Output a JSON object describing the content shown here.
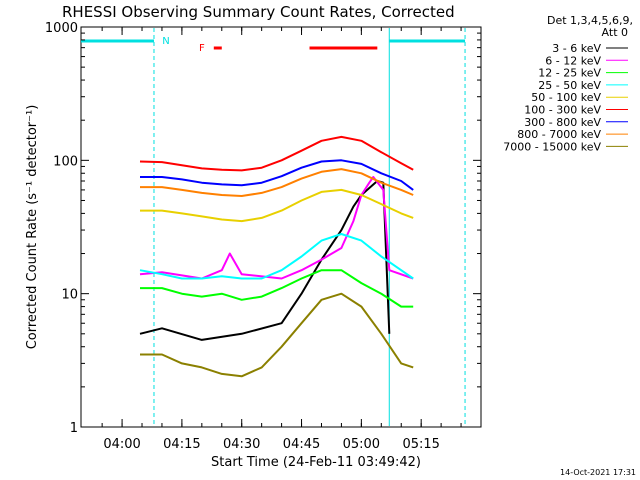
{
  "chart_data": {
    "type": "line",
    "title": "RHESSI Observing Summary Count Rates, Corrected",
    "xlabel": "Start Time (24-Feb-11 03:49:42)",
    "ylabel": "Corrected Count Rate (s⁻¹ detector⁻¹)",
    "yscale": "log",
    "ylim": [
      1,
      1000
    ],
    "xlim_minutes": [
      229.7,
      330
    ],
    "x_ticks": [
      {
        "label": "04:00",
        "minute": 240
      },
      {
        "label": "04:15",
        "minute": 255
      },
      {
        "label": "04:30",
        "minute": 270
      },
      {
        "label": "04:45",
        "minute": 285
      },
      {
        "label": "05:00",
        "minute": 300
      },
      {
        "label": "05:15",
        "minute": 315
      }
    ],
    "y_ticks": [
      {
        "label": "1",
        "value": 1
      },
      {
        "label": "10",
        "value": 10
      },
      {
        "label": "100",
        "value": 100
      },
      {
        "label": "1000",
        "value": 1000
      }
    ],
    "legend_title": "Det 1,3,4,5,6,9,",
    "legend_title2": "Att 0",
    "legend_position": "top-right",
    "series": [
      {
        "name": "3 - 6 keV",
        "color": "#000000",
        "x": [
          244.5,
          250,
          260,
          270,
          280,
          285,
          290,
          295,
          298,
          300,
          302,
          304,
          305.5,
          307
        ],
        "y": [
          5,
          5.5,
          4.5,
          5,
          6,
          10,
          18,
          30,
          45,
          55,
          62,
          70,
          68,
          5
        ]
      },
      {
        "name": "6 - 12 keV",
        "color": "#ff00ff",
        "x": [
          244.5,
          250,
          260,
          265,
          267,
          270,
          280,
          285,
          290,
          295,
          298,
          300,
          302,
          303,
          305.5,
          307,
          313
        ],
        "y": [
          14,
          14.5,
          13,
          15,
          20,
          14,
          13,
          15,
          18,
          22,
          35,
          55,
          68,
          75,
          60,
          15,
          13
        ]
      },
      {
        "name": "12 - 25 keV",
        "color": "#00ff00",
        "x": [
          244.5,
          250,
          255,
          260,
          265,
          270,
          275,
          280,
          285,
          290,
          295,
          300,
          305,
          310,
          313
        ],
        "y": [
          11,
          11,
          10,
          9.5,
          10,
          9,
          9.5,
          11,
          13,
          15,
          15,
          12,
          10,
          8,
          8
        ]
      },
      {
        "name": "25 - 50 keV",
        "color": "#00ffff",
        "x": [
          244.5,
          250,
          255,
          260,
          265,
          270,
          275,
          280,
          285,
          290,
          295,
          300,
          305,
          310,
          313
        ],
        "y": [
          15,
          14,
          13,
          13,
          13.5,
          13,
          13,
          15,
          19,
          25,
          28,
          25,
          19,
          15,
          13
        ]
      },
      {
        "name": "50 - 100 keV",
        "color": "#e8d000",
        "x": [
          244.5,
          250,
          255,
          260,
          265,
          270,
          275,
          280,
          285,
          290,
          295,
          300,
          305,
          310,
          313
        ],
        "y": [
          42,
          42,
          40,
          38,
          36,
          35,
          37,
          42,
          50,
          58,
          60,
          55,
          47,
          40,
          37
        ]
      },
      {
        "name": "100 - 300 keV",
        "color": "#ff0000",
        "x": [
          244.5,
          250,
          255,
          260,
          265,
          270,
          275,
          280,
          285,
          290,
          295,
          300,
          305,
          310,
          313
        ],
        "y": [
          98,
          97,
          92,
          87,
          85,
          84,
          88,
          100,
          118,
          140,
          150,
          140,
          115,
          95,
          85
        ]
      },
      {
        "name": "300 - 800 keV",
        "color": "#0000ff",
        "x": [
          244.5,
          250,
          255,
          260,
          265,
          270,
          275,
          280,
          285,
          290,
          295,
          300,
          305,
          310,
          313
        ],
        "y": [
          75,
          75,
          72,
          68,
          66,
          65,
          68,
          76,
          88,
          98,
          100,
          94,
          80,
          70,
          60
        ]
      },
      {
        "name": "800 - 7000 keV",
        "color": "#ff8000",
        "x": [
          244.5,
          250,
          255,
          260,
          265,
          270,
          275,
          280,
          285,
          290,
          295,
          300,
          305,
          310,
          313
        ],
        "y": [
          63,
          63,
          60,
          57,
          55,
          54,
          57,
          63,
          73,
          82,
          86,
          80,
          68,
          60,
          55
        ]
      },
      {
        "name": "7000 - 15000 keV",
        "color": "#8b8000",
        "x": [
          244.5,
          250,
          255,
          260,
          265,
          270,
          275,
          280,
          285,
          290,
          295,
          300,
          305,
          310,
          313
        ],
        "y": [
          3.5,
          3.5,
          3,
          2.8,
          2.5,
          2.4,
          2.8,
          4,
          6,
          9,
          10,
          8,
          5,
          3,
          2.8
        ]
      }
    ],
    "bars": [
      {
        "name": "night",
        "label": "N",
        "color": "#00e0e0",
        "segments": [
          [
            229.7,
            248
          ],
          [
            307,
            326
          ]
        ],
        "label_at": 251
      },
      {
        "name": "flare",
        "label": "F",
        "color": "#ff0000",
        "segments": [
          [
            263,
            265
          ],
          [
            287,
            304
          ]
        ],
        "label_at": 260
      }
    ],
    "markers": [
      {
        "name": "saa-start",
        "minute": 248,
        "style": "dashed",
        "color": "#00e0e0"
      },
      {
        "name": "night-end",
        "minute": 307,
        "style": "solid",
        "color": "#00e0e0"
      },
      {
        "name": "saa-end",
        "minute": 326,
        "style": "dashed",
        "color": "#00e0e0"
      }
    ]
  },
  "footer": "14-Oct-2021 17:31"
}
